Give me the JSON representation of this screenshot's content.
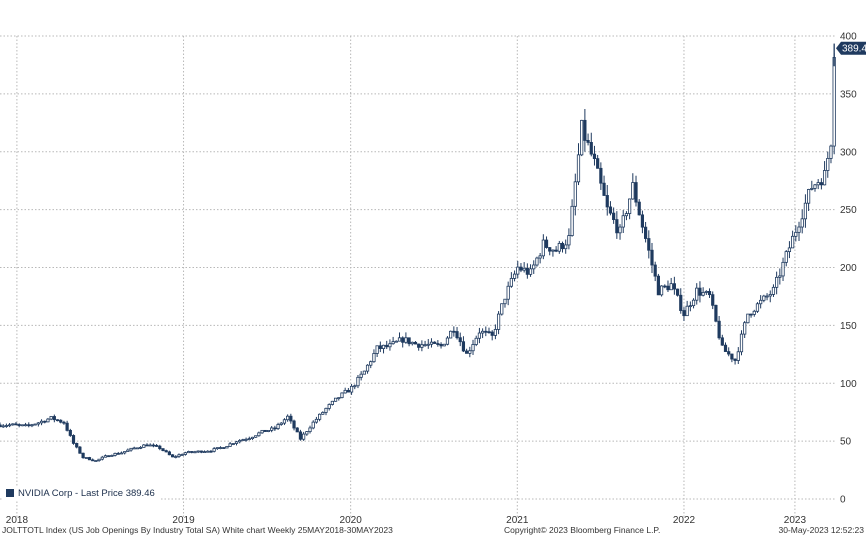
{
  "chart_data": {
    "type": "candlestick",
    "series": [
      {
        "name": "NVIDIA Corp - Last Price",
        "last_value_label": "389.46",
        "color": "#1f3a5f",
        "points": [
          [
            "2018-05-25",
            64
          ],
          [
            "2018-06-22",
            64
          ],
          [
            "2018-07-20",
            63
          ],
          [
            "2018-08-17",
            66
          ],
          [
            "2018-09-14",
            70
          ],
          [
            "2018-10-12",
            66
          ],
          [
            "2018-11-02",
            48
          ],
          [
            "2018-11-23",
            36
          ],
          [
            "2018-12-21",
            33
          ],
          [
            "2019-01-18",
            38
          ],
          [
            "2019-02-15",
            40
          ],
          [
            "2019-03-15",
            44
          ],
          [
            "2019-04-12",
            47
          ],
          [
            "2019-05-10",
            44
          ],
          [
            "2019-06-07",
            36
          ],
          [
            "2019-07-05",
            40
          ],
          [
            "2019-08-02",
            41
          ],
          [
            "2019-08-30",
            42
          ],
          [
            "2019-09-27",
            45
          ],
          [
            "2019-10-25",
            50
          ],
          [
            "2019-11-22",
            53
          ],
          [
            "2019-12-20",
            58
          ],
          [
            "2020-01-17",
            61
          ],
          [
            "2020-02-14",
            71
          ],
          [
            "2020-03-13",
            52
          ],
          [
            "2020-04-10",
            66
          ],
          [
            "2020-05-08",
            78
          ],
          [
            "2020-06-05",
            88
          ],
          [
            "2020-07-03",
            96
          ],
          [
            "2020-07-31",
            110
          ],
          [
            "2020-08-28",
            130
          ],
          [
            "2020-09-25",
            132
          ],
          [
            "2020-10-23",
            138
          ],
          [
            "2020-11-20",
            134
          ],
          [
            "2020-12-18",
            133
          ],
          [
            "2021-01-15",
            132
          ],
          [
            "2021-02-12",
            148
          ],
          [
            "2021-03-12",
            125
          ],
          [
            "2021-04-09",
            145
          ],
          [
            "2021-05-07",
            140
          ],
          [
            "2021-06-04",
            175
          ],
          [
            "2021-07-02",
            200
          ],
          [
            "2021-07-30",
            195
          ],
          [
            "2021-08-27",
            220
          ],
          [
            "2021-09-24",
            215
          ],
          [
            "2021-10-22",
            225
          ],
          [
            "2021-11-19",
            320
          ],
          [
            "2021-12-17",
            290
          ],
          [
            "2022-01-14",
            250
          ],
          [
            "2022-02-11",
            230
          ],
          [
            "2022-03-11",
            270
          ],
          [
            "2022-04-08",
            225
          ],
          [
            "2022-05-06",
            180
          ],
          [
            "2022-06-03",
            185
          ],
          [
            "2022-07-01",
            160
          ],
          [
            "2022-07-29",
            180
          ],
          [
            "2022-08-26",
            175
          ],
          [
            "2022-09-23",
            130
          ],
          [
            "2022-10-21",
            120
          ],
          [
            "2022-11-18",
            160
          ],
          [
            "2022-12-16",
            170
          ],
          [
            "2023-01-13",
            180
          ],
          [
            "2023-02-10",
            210
          ],
          [
            "2023-03-10",
            240
          ],
          [
            "2023-04-07",
            270
          ],
          [
            "2023-05-05",
            280
          ],
          [
            "2023-05-19",
            310
          ],
          [
            "2023-05-26",
            389.46
          ]
        ]
      }
    ],
    "x_tick_labels": [
      "2018",
      "2019",
      "2020",
      "2021",
      "2022",
      "2023"
    ],
    "x_ticks": [
      "2018-07-01",
      "2019-07-01",
      "2020-07-01",
      "2021-07-01",
      "2022-07-01",
      "2023-03-01"
    ],
    "y_ticks": [
      0,
      50,
      100,
      150,
      200,
      250,
      300,
      350,
      400
    ],
    "ylim": [
      0,
      400
    ],
    "xlim": [
      "2018-05-25",
      "2023-05-30"
    ],
    "grid": true,
    "legend_position": "bottom-left",
    "title": "",
    "xlabel": "",
    "ylabel": ""
  },
  "footer": {
    "left": "JOLTTOTL Index (US Job Openings By Industry Total SA) White chart  Weekly 25MAY2018-30MAY2023",
    "center": "Copyright© 2023 Bloomberg Finance L.P.",
    "right": "30-May-2023 12:52:23"
  },
  "colors": {
    "background": "#ffffff",
    "grid": "#b8b8b8",
    "series": "#1f3a5f",
    "price_tag": "#1f3a5f"
  }
}
